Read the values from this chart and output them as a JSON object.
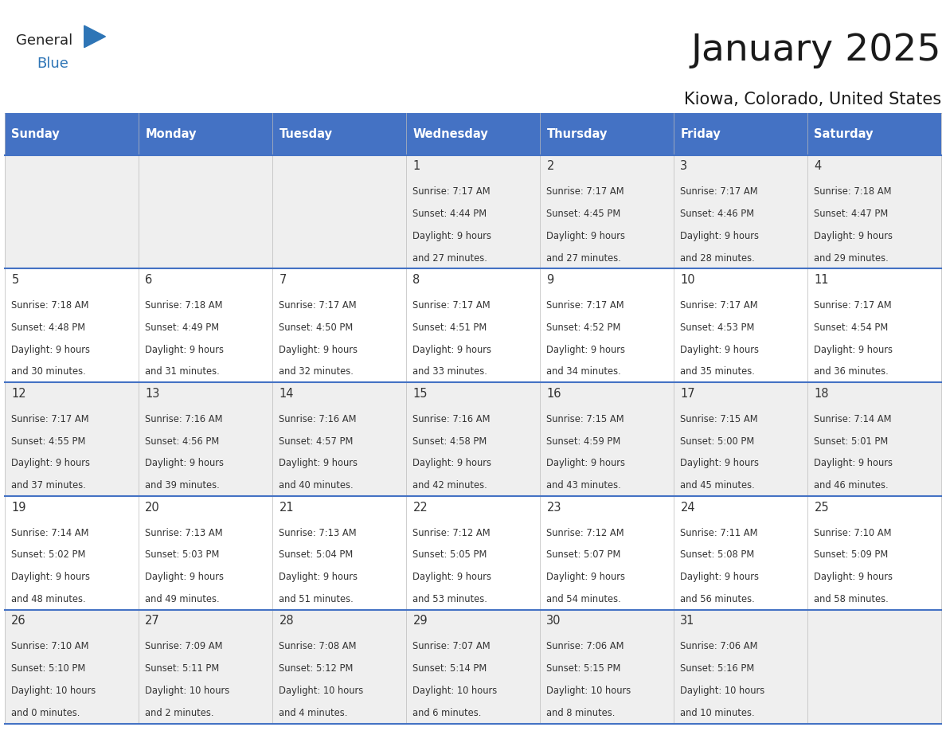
{
  "title": "January 2025",
  "subtitle": "Kiowa, Colorado, United States",
  "header_bg_color": "#4472C4",
  "header_text_color": "#FFFFFF",
  "day_names": [
    "Sunday",
    "Monday",
    "Tuesday",
    "Wednesday",
    "Thursday",
    "Friday",
    "Saturday"
  ],
  "row_bg_even": "#EFEFEF",
  "row_bg_odd": "#FFFFFF",
  "cell_text_color": "#333333",
  "day_num_color": "#333333",
  "grid_line_color": "#4472C4",
  "logo_general_color": "#222222",
  "logo_blue_color": "#2E75B6",
  "calendar_data": [
    [
      {
        "day": "",
        "sunrise": "",
        "sunset": "",
        "daylight_hrs": "",
        "daylight_min": ""
      },
      {
        "day": "",
        "sunrise": "",
        "sunset": "",
        "daylight_hrs": "",
        "daylight_min": ""
      },
      {
        "day": "",
        "sunrise": "",
        "sunset": "",
        "daylight_hrs": "",
        "daylight_min": ""
      },
      {
        "day": "1",
        "sunrise": "7:17 AM",
        "sunset": "4:44 PM",
        "daylight_hrs": "9 hours",
        "daylight_min": "and 27 minutes."
      },
      {
        "day": "2",
        "sunrise": "7:17 AM",
        "sunset": "4:45 PM",
        "daylight_hrs": "9 hours",
        "daylight_min": "and 27 minutes."
      },
      {
        "day": "3",
        "sunrise": "7:17 AM",
        "sunset": "4:46 PM",
        "daylight_hrs": "9 hours",
        "daylight_min": "and 28 minutes."
      },
      {
        "day": "4",
        "sunrise": "7:18 AM",
        "sunset": "4:47 PM",
        "daylight_hrs": "9 hours",
        "daylight_min": "and 29 minutes."
      }
    ],
    [
      {
        "day": "5",
        "sunrise": "7:18 AM",
        "sunset": "4:48 PM",
        "daylight_hrs": "9 hours",
        "daylight_min": "and 30 minutes."
      },
      {
        "day": "6",
        "sunrise": "7:18 AM",
        "sunset": "4:49 PM",
        "daylight_hrs": "9 hours",
        "daylight_min": "and 31 minutes."
      },
      {
        "day": "7",
        "sunrise": "7:17 AM",
        "sunset": "4:50 PM",
        "daylight_hrs": "9 hours",
        "daylight_min": "and 32 minutes."
      },
      {
        "day": "8",
        "sunrise": "7:17 AM",
        "sunset": "4:51 PM",
        "daylight_hrs": "9 hours",
        "daylight_min": "and 33 minutes."
      },
      {
        "day": "9",
        "sunrise": "7:17 AM",
        "sunset": "4:52 PM",
        "daylight_hrs": "9 hours",
        "daylight_min": "and 34 minutes."
      },
      {
        "day": "10",
        "sunrise": "7:17 AM",
        "sunset": "4:53 PM",
        "daylight_hrs": "9 hours",
        "daylight_min": "and 35 minutes."
      },
      {
        "day": "11",
        "sunrise": "7:17 AM",
        "sunset": "4:54 PM",
        "daylight_hrs": "9 hours",
        "daylight_min": "and 36 minutes."
      }
    ],
    [
      {
        "day": "12",
        "sunrise": "7:17 AM",
        "sunset": "4:55 PM",
        "daylight_hrs": "9 hours",
        "daylight_min": "and 37 minutes."
      },
      {
        "day": "13",
        "sunrise": "7:16 AM",
        "sunset": "4:56 PM",
        "daylight_hrs": "9 hours",
        "daylight_min": "and 39 minutes."
      },
      {
        "day": "14",
        "sunrise": "7:16 AM",
        "sunset": "4:57 PM",
        "daylight_hrs": "9 hours",
        "daylight_min": "and 40 minutes."
      },
      {
        "day": "15",
        "sunrise": "7:16 AM",
        "sunset": "4:58 PM",
        "daylight_hrs": "9 hours",
        "daylight_min": "and 42 minutes."
      },
      {
        "day": "16",
        "sunrise": "7:15 AM",
        "sunset": "4:59 PM",
        "daylight_hrs": "9 hours",
        "daylight_min": "and 43 minutes."
      },
      {
        "day": "17",
        "sunrise": "7:15 AM",
        "sunset": "5:00 PM",
        "daylight_hrs": "9 hours",
        "daylight_min": "and 45 minutes."
      },
      {
        "day": "18",
        "sunrise": "7:14 AM",
        "sunset": "5:01 PM",
        "daylight_hrs": "9 hours",
        "daylight_min": "and 46 minutes."
      }
    ],
    [
      {
        "day": "19",
        "sunrise": "7:14 AM",
        "sunset": "5:02 PM",
        "daylight_hrs": "9 hours",
        "daylight_min": "and 48 minutes."
      },
      {
        "day": "20",
        "sunrise": "7:13 AM",
        "sunset": "5:03 PM",
        "daylight_hrs": "9 hours",
        "daylight_min": "and 49 minutes."
      },
      {
        "day": "21",
        "sunrise": "7:13 AM",
        "sunset": "5:04 PM",
        "daylight_hrs": "9 hours",
        "daylight_min": "and 51 minutes."
      },
      {
        "day": "22",
        "sunrise": "7:12 AM",
        "sunset": "5:05 PM",
        "daylight_hrs": "9 hours",
        "daylight_min": "and 53 minutes."
      },
      {
        "day": "23",
        "sunrise": "7:12 AM",
        "sunset": "5:07 PM",
        "daylight_hrs": "9 hours",
        "daylight_min": "and 54 minutes."
      },
      {
        "day": "24",
        "sunrise": "7:11 AM",
        "sunset": "5:08 PM",
        "daylight_hrs": "9 hours",
        "daylight_min": "and 56 minutes."
      },
      {
        "day": "25",
        "sunrise": "7:10 AM",
        "sunset": "5:09 PM",
        "daylight_hrs": "9 hours",
        "daylight_min": "and 58 minutes."
      }
    ],
    [
      {
        "day": "26",
        "sunrise": "7:10 AM",
        "sunset": "5:10 PM",
        "daylight_hrs": "10 hours",
        "daylight_min": "and 0 minutes."
      },
      {
        "day": "27",
        "sunrise": "7:09 AM",
        "sunset": "5:11 PM",
        "daylight_hrs": "10 hours",
        "daylight_min": "and 2 minutes."
      },
      {
        "day": "28",
        "sunrise": "7:08 AM",
        "sunset": "5:12 PM",
        "daylight_hrs": "10 hours",
        "daylight_min": "and 4 minutes."
      },
      {
        "day": "29",
        "sunrise": "7:07 AM",
        "sunset": "5:14 PM",
        "daylight_hrs": "10 hours",
        "daylight_min": "and 6 minutes."
      },
      {
        "day": "30",
        "sunrise": "7:06 AM",
        "sunset": "5:15 PM",
        "daylight_hrs": "10 hours",
        "daylight_min": "and 8 minutes."
      },
      {
        "day": "31",
        "sunrise": "7:06 AM",
        "sunset": "5:16 PM",
        "daylight_hrs": "10 hours",
        "daylight_min": "and 10 minutes."
      },
      {
        "day": "",
        "sunrise": "",
        "sunset": "",
        "daylight_hrs": "",
        "daylight_min": ""
      }
    ]
  ]
}
